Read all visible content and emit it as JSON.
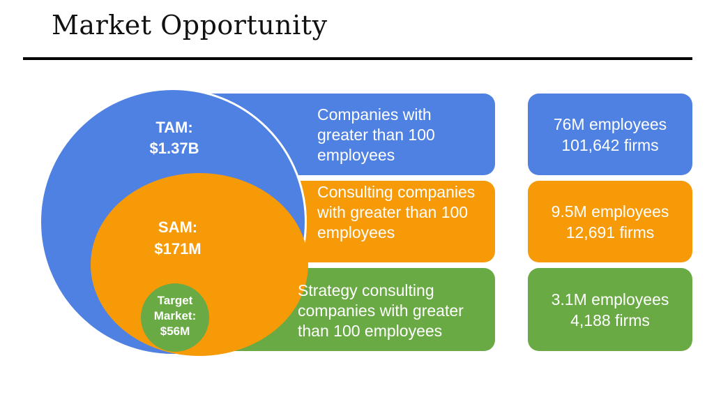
{
  "colors": {
    "blue": "#4f81e3",
    "orange": "#f79a08",
    "green": "#6aaa45",
    "title": "#111111"
  },
  "title": "Market Opportunity",
  "circles": {
    "tam": {
      "line1": "TAM:",
      "line2": "$1.37B"
    },
    "sam": {
      "line1": "SAM:",
      "line2": "$171M"
    },
    "target": {
      "line1": "Target",
      "line2": "Market:",
      "line3": "$56M"
    }
  },
  "bands": {
    "tam": "Companies with greater than 100 employees",
    "sam": "Consulting companies with greater than 100 employees",
    "target": "Strategy consulting companies  with greater than 100 employees"
  },
  "stats": {
    "tam": {
      "employees": "76M employees",
      "firms": "101,642 firms"
    },
    "sam": {
      "employees": "9.5M employees",
      "firms": "12,691 firms"
    },
    "target": {
      "employees": "3.1M employees",
      "firms": "4,188 firms"
    }
  }
}
